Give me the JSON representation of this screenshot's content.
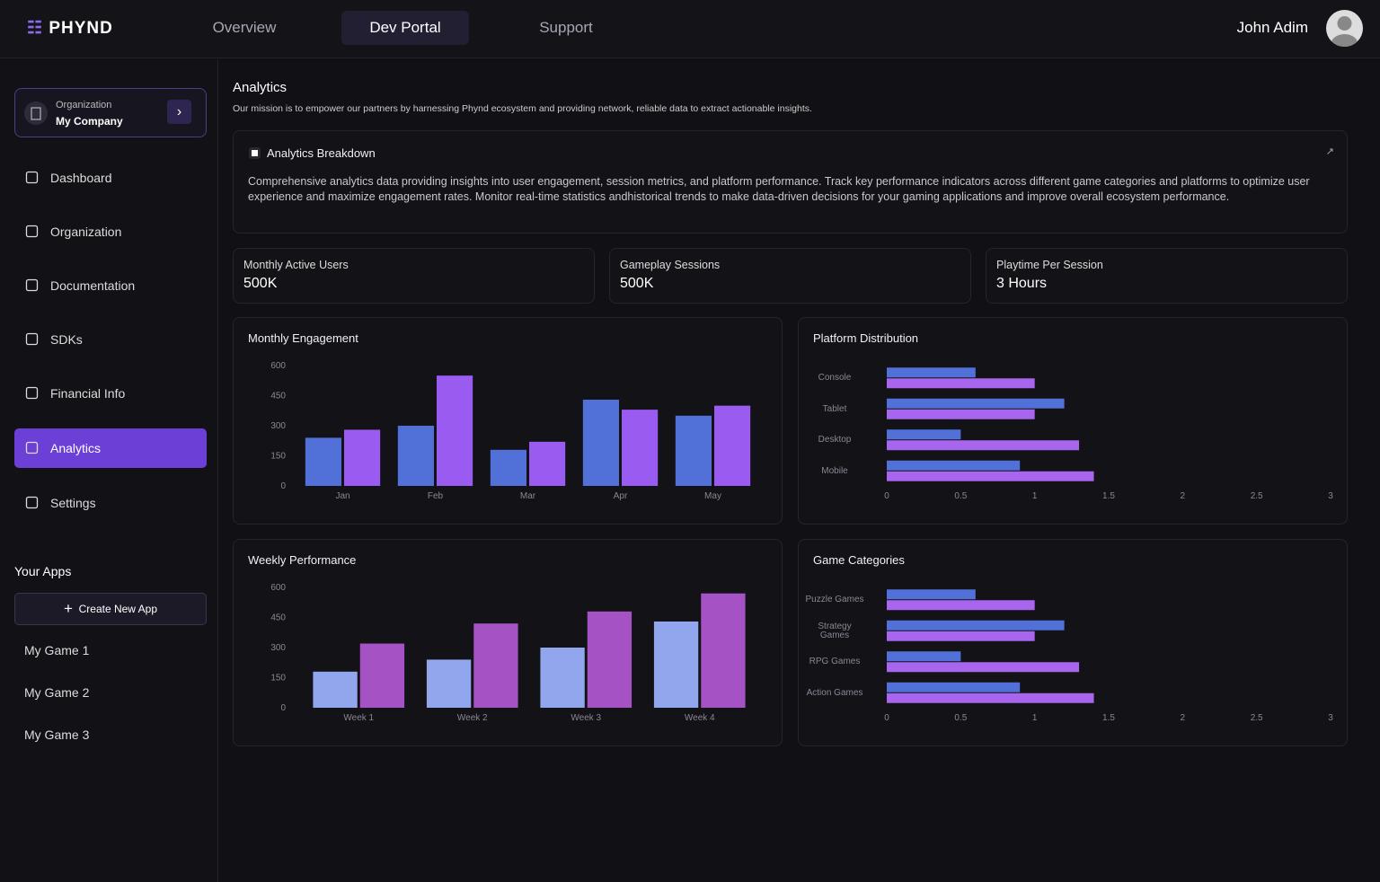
{
  "header": {
    "logo": "PHYND",
    "nav": [
      "Overview",
      "Dev Portal",
      "Support"
    ],
    "user": "John Adim"
  },
  "sidebar": {
    "org_label": "Organization",
    "org_name": "My Company",
    "menu": [
      "Dashboard",
      "Organization",
      "Documentation",
      "SDKs",
      "Financial Info",
      "Analytics",
      "Settings"
    ],
    "apps_title": "Your Apps",
    "create_button": "Create New App",
    "apps": [
      "My Game 1",
      "My Game 2",
      "My Game 3"
    ]
  },
  "page": {
    "title": "Analytics",
    "subtitle": "Our mission is to empower our partners by harnessing Phynd ecosystem and providing network, reliable data to extract actionable insights.",
    "breakdown_title": "Analytics Breakdown",
    "breakdown_text": "Comprehensive analytics data providing insights into user engagement, session metrics, and platform performance. Track key performance indicators across different game categories and platforms to optimize user experience and maximize engagement rates. Monitor real-time statistics andhistorical trends to make data-driven decisions for your gaming applications and improve overall ecosystem performance.",
    "stats": [
      {
        "label": "Monthly Active Users",
        "value": "500K"
      },
      {
        "label": "Gameplay Sessions",
        "value": "500K"
      },
      {
        "label": "Playtime Per Session",
        "value": "3 Hours"
      }
    ]
  },
  "chart_data": [
    {
      "type": "bar",
      "title": "Monthly Engagement",
      "categories": [
        "Jan",
        "Feb",
        "Mar",
        "Apr",
        "May"
      ],
      "series": [
        {
          "color": "#5170d8",
          "values": [
            240,
            300,
            180,
            430,
            350
          ]
        },
        {
          "color": "#9a5cf0",
          "values": [
            280,
            550,
            220,
            380,
            400
          ]
        }
      ],
      "ylim": [
        0,
        600
      ],
      "yticks": [
        0,
        150,
        300,
        450,
        600
      ]
    },
    {
      "type": "barh",
      "title": "Platform Distribution",
      "categories": [
        "Console",
        "Tablet",
        "Desktop",
        "Mobile"
      ],
      "series": [
        {
          "color": "#5170d8",
          "values": [
            0.6,
            1.2,
            0.5,
            0.9
          ]
        },
        {
          "color": "#a865ee",
          "values": [
            1,
            1,
            1.3,
            1.4
          ]
        }
      ],
      "xlim": [
        0,
        3
      ],
      "xticks": [
        0,
        0.5,
        1,
        1.5,
        2,
        2.5,
        3
      ]
    },
    {
      "type": "bar",
      "title": "Weekly Performance",
      "categories": [
        "Week 1",
        "Week 2",
        "Week 3",
        "Week 4"
      ],
      "series": [
        {
          "color": "#91a6ec",
          "values": [
            180,
            240,
            300,
            430
          ]
        },
        {
          "color": "#a552c4",
          "values": [
            320,
            420,
            480,
            570
          ]
        }
      ],
      "ylim": [
        0,
        600
      ],
      "yticks": [
        0,
        150,
        300,
        450,
        600
      ]
    },
    {
      "type": "barh",
      "title": "Game Categories",
      "categories": [
        "Puzzle Games",
        "Strategy Games",
        "RPG Games",
        "Action Games"
      ],
      "series": [
        {
          "color": "#5170d8",
          "values": [
            0.6,
            1.2,
            0.5,
            0.9
          ]
        },
        {
          "color": "#a865ee",
          "values": [
            1,
            1,
            1.3,
            1.4
          ]
        }
      ],
      "xlim": [
        0,
        3
      ],
      "xticks": [
        0,
        0.5,
        1,
        1.5,
        2,
        2.5,
        3
      ]
    }
  ]
}
